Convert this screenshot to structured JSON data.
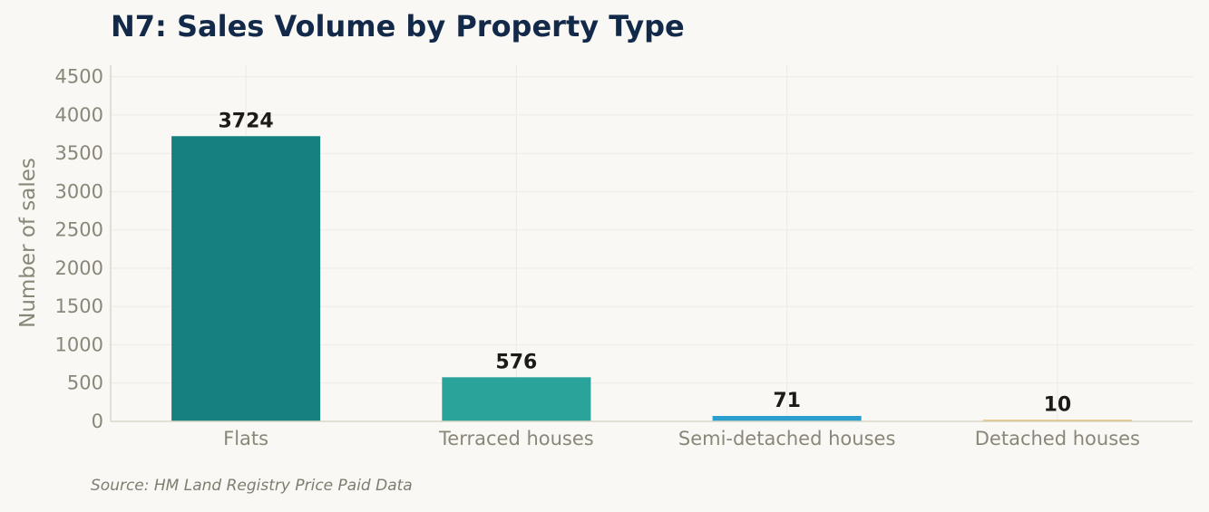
{
  "chart_data": {
    "type": "bar",
    "title": "N7: Sales Volume by Property Type",
    "ylabel": "Number of sales",
    "xlabel": "",
    "categories": [
      "Flats",
      "Terraced houses",
      "Semi-detached houses",
      "Detached houses"
    ],
    "values": [
      3724,
      576,
      71,
      10
    ],
    "data_labels": [
      "3724",
      "576",
      "71",
      "10"
    ],
    "colors": [
      "#168080",
      "#2aa39b",
      "#2a9fcf",
      "#e0a030"
    ],
    "ylim": [
      0,
      4650
    ],
    "yticks": [
      0,
      500,
      1000,
      1500,
      2000,
      2500,
      3000,
      3500,
      4000,
      4500
    ],
    "ytick_labels": [
      "0",
      "500",
      "1000",
      "1500",
      "2000",
      "2500",
      "3000",
      "3500",
      "4000",
      "4500"
    ],
    "grid": true,
    "legend": "none"
  },
  "source": "Source: HM Land Registry Price Paid Data"
}
